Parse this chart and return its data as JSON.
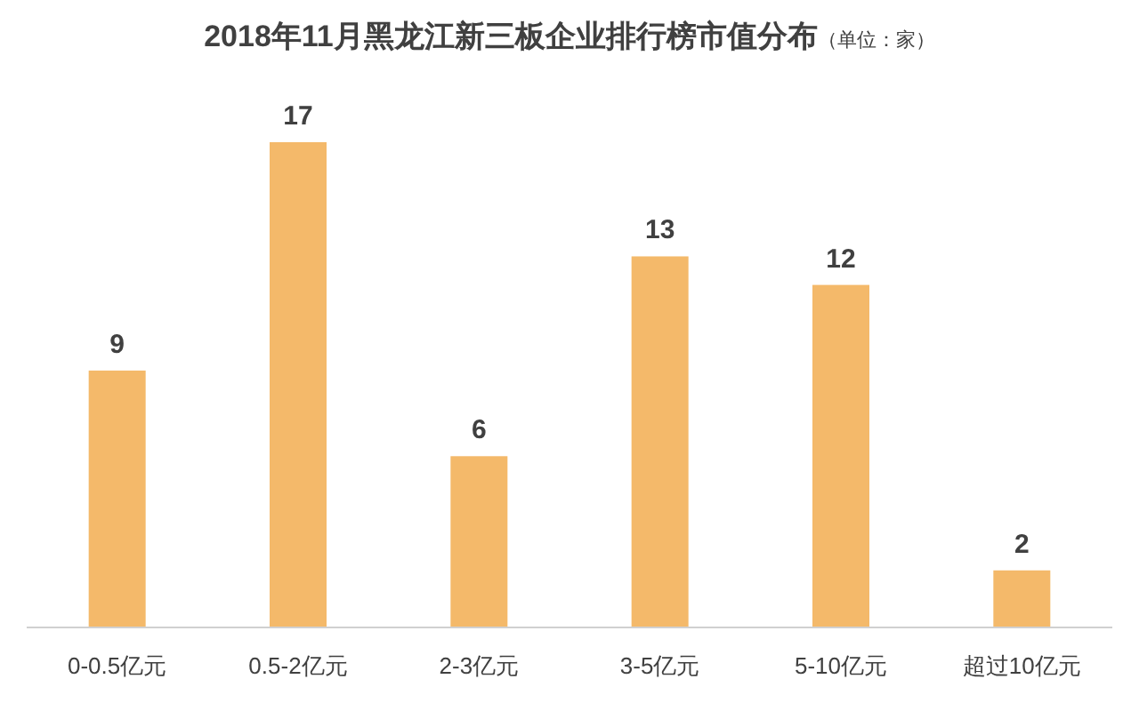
{
  "chart_data": {
    "type": "bar",
    "title": "2018年11月黑龙江新三板企业排行榜市值分布",
    "subtitle": "（单位：家）",
    "categories": [
      "0-0.5亿元",
      "0.5-2亿元",
      "2-3亿元",
      "3-5亿元",
      "5-10亿元",
      "超过10亿元"
    ],
    "values": [
      9,
      17,
      6,
      13,
      12,
      2
    ],
    "color": "#f4b96a",
    "data_labels": true
  }
}
